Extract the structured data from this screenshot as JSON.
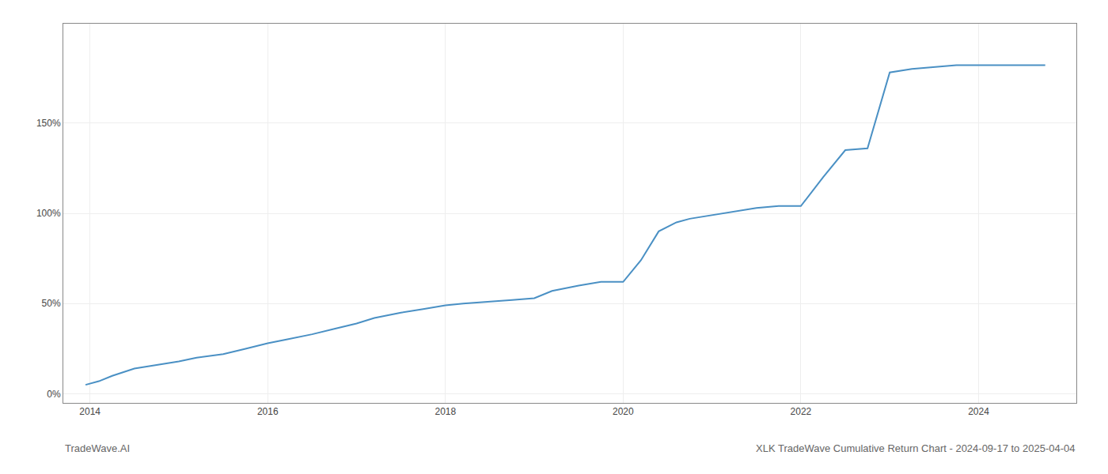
{
  "chart_data": {
    "type": "line",
    "title": "XLK TradeWave Cumulative Return Chart - 2024-09-17 to 2025-04-04",
    "annotations": [
      {
        "text": "TradeWave.AI"
      }
    ],
    "x": [
      2013.95,
      2014.1,
      2014.25,
      2014.5,
      2014.75,
      2015.0,
      2015.2,
      2015.5,
      2015.75,
      2016.0,
      2016.2,
      2016.5,
      2016.75,
      2017.0,
      2017.2,
      2017.5,
      2017.75,
      2018.0,
      2018.2,
      2018.5,
      2018.75,
      2019.0,
      2019.2,
      2019.5,
      2019.75,
      2020.0,
      2020.2,
      2020.4,
      2020.6,
      2020.75,
      2021.0,
      2021.25,
      2021.5,
      2021.75,
      2022.0,
      2022.25,
      2022.5,
      2022.75,
      2023.0,
      2023.25,
      2023.5,
      2023.75,
      2024.0,
      2024.25,
      2024.5,
      2024.75
    ],
    "values": [
      0.05,
      0.07,
      0.1,
      0.14,
      0.16,
      0.18,
      0.2,
      0.22,
      0.25,
      0.28,
      0.3,
      0.33,
      0.36,
      0.39,
      0.42,
      0.45,
      0.47,
      0.49,
      0.5,
      0.51,
      0.52,
      0.53,
      0.57,
      0.6,
      0.62,
      0.62,
      0.74,
      0.9,
      0.95,
      0.97,
      0.99,
      1.01,
      1.03,
      1.04,
      1.04,
      1.2,
      1.35,
      1.36,
      1.78,
      1.8,
      1.81,
      1.82,
      1.82,
      1.82,
      1.82,
      1.82
    ],
    "color": "#4a90c4",
    "xlim": [
      2013.7,
      2025.1
    ],
    "ylim": [
      -0.05,
      2.05
    ],
    "xticks": [
      2014,
      2016,
      2018,
      2020,
      2022,
      2024
    ],
    "yticks": [
      {
        "value": 0.0,
        "label": "0%"
      },
      {
        "value": 0.5,
        "label": "50%"
      },
      {
        "value": 1.0,
        "label": "100%"
      },
      {
        "value": 1.5,
        "label": "150%"
      }
    ],
    "grid": true
  }
}
